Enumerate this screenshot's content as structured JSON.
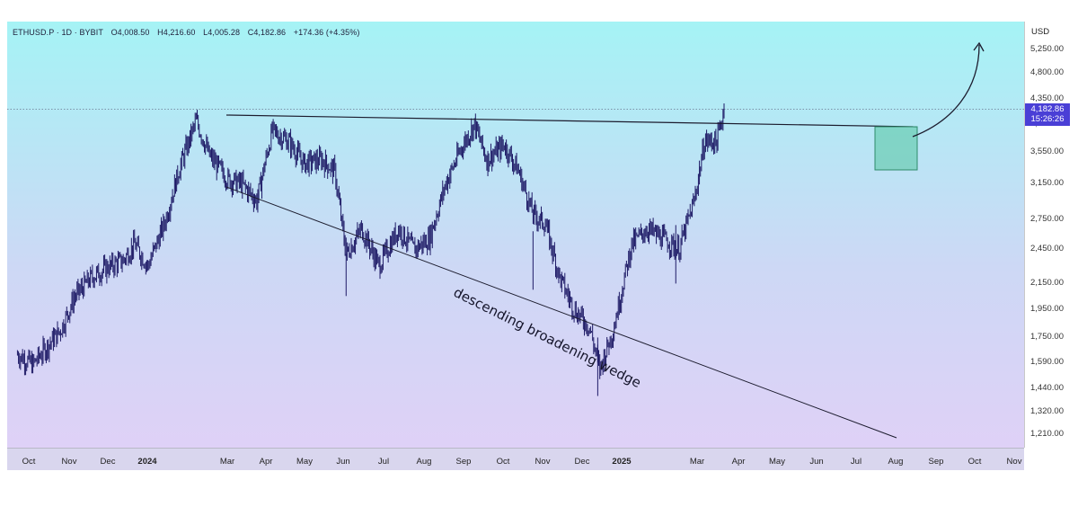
{
  "symbol_line": {
    "symbol": "ETHUSD.P · 1D · BYBIT",
    "open": "O4,008.50",
    "high": "H4,216.60",
    "low": "L4,005.28",
    "close": "C4,182.86",
    "change": "+174.36 (+4.35%)"
  },
  "price_axis": {
    "currency": "USD",
    "ticks": [
      "5,250.00",
      "4,800.00",
      "4,350.00",
      "3,950.00",
      "3,550.00",
      "3,150.00",
      "2,750.00",
      "2,450.00",
      "2,150.00",
      "1,950.00",
      "1,750.00",
      "1,590.00",
      "1,440.00",
      "1,320.00",
      "1,210.00"
    ]
  },
  "last_price": {
    "value": "4,182.86",
    "countdown": "15:26:26",
    "color": "#4a3fd6"
  },
  "time_axis": {
    "labels": [
      "Oct",
      "Nov",
      "Dec",
      "2024",
      "Mar",
      "Apr",
      "May",
      "Jun",
      "Jul",
      "Aug",
      "Sep",
      "Oct",
      "Nov",
      "Dec",
      "2025",
      "Mar",
      "Apr",
      "May",
      "Jun",
      "Jul",
      "Aug",
      "Sep",
      "Oct",
      "Nov"
    ]
  },
  "annotation": {
    "text": "descending broadening wedge"
  },
  "colors": {
    "candle": "#1e1a66",
    "trendline": "#1c1c2e",
    "box_fill": "#3fbf8f",
    "box_border": "#2e8b6a",
    "gradient_top": "#a5f3f5",
    "gradient_bottom": "#e1d0f7"
  },
  "chart_data": {
    "type": "line",
    "title": "",
    "xlabel": "",
    "ylabel": "",
    "ylim": [
      1150,
      5500
    ],
    "y_scale": "log",
    "x_range": [
      "2023-09-20",
      "2025-11-10"
    ],
    "series": [
      {
        "x": [
          "2023-09-20",
          "2023-10-05",
          "2023-10-20",
          "2023-11-01",
          "2023-11-15",
          "2023-12-01",
          "2023-12-15",
          "2024-01-01",
          "2024-01-12",
          "2024-01-25",
          "2024-02-10",
          "2024-02-25",
          "2024-03-12",
          "2024-03-25",
          "2024-04-12",
          "2024-04-25",
          "2024-05-10",
          "2024-05-25",
          "2024-06-10",
          "2024-06-25",
          "2024-07-12",
          "2024-07-25",
          "2024-08-05",
          "2024-08-20",
          "2024-09-06",
          "2024-09-25",
          "2024-10-10",
          "2024-10-25",
          "2024-11-10",
          "2024-11-25",
          "2024-12-08",
          "2024-12-20",
          "2025-01-06",
          "2025-01-20",
          "2025-02-03",
          "2025-02-15",
          "2025-03-01",
          "2025-03-15",
          "2025-03-30",
          "2025-04-09",
          "2025-04-22",
          "2025-05-10",
          "2025-05-25",
          "2025-06-10",
          "2025-06-25",
          "2025-07-10",
          "2025-07-20",
          "2025-08-01",
          "2025-08-08"
        ],
        "values": [
          1640,
          1580,
          1700,
          1800,
          2050,
          2200,
          2280,
          2350,
          2500,
          2300,
          2700,
          3350,
          4000,
          3500,
          3200,
          3150,
          2950,
          3850,
          3700,
          3400,
          3450,
          3300,
          2400,
          2650,
          2300,
          2650,
          2450,
          2550,
          3150,
          3600,
          3950,
          3450,
          3650,
          3300,
          2800,
          2700,
          2200,
          1950,
          1820,
          1550,
          1800,
          2500,
          2650,
          2550,
          2450,
          2950,
          3700,
          3700,
          4182.86
        ]
      }
    ]
  }
}
